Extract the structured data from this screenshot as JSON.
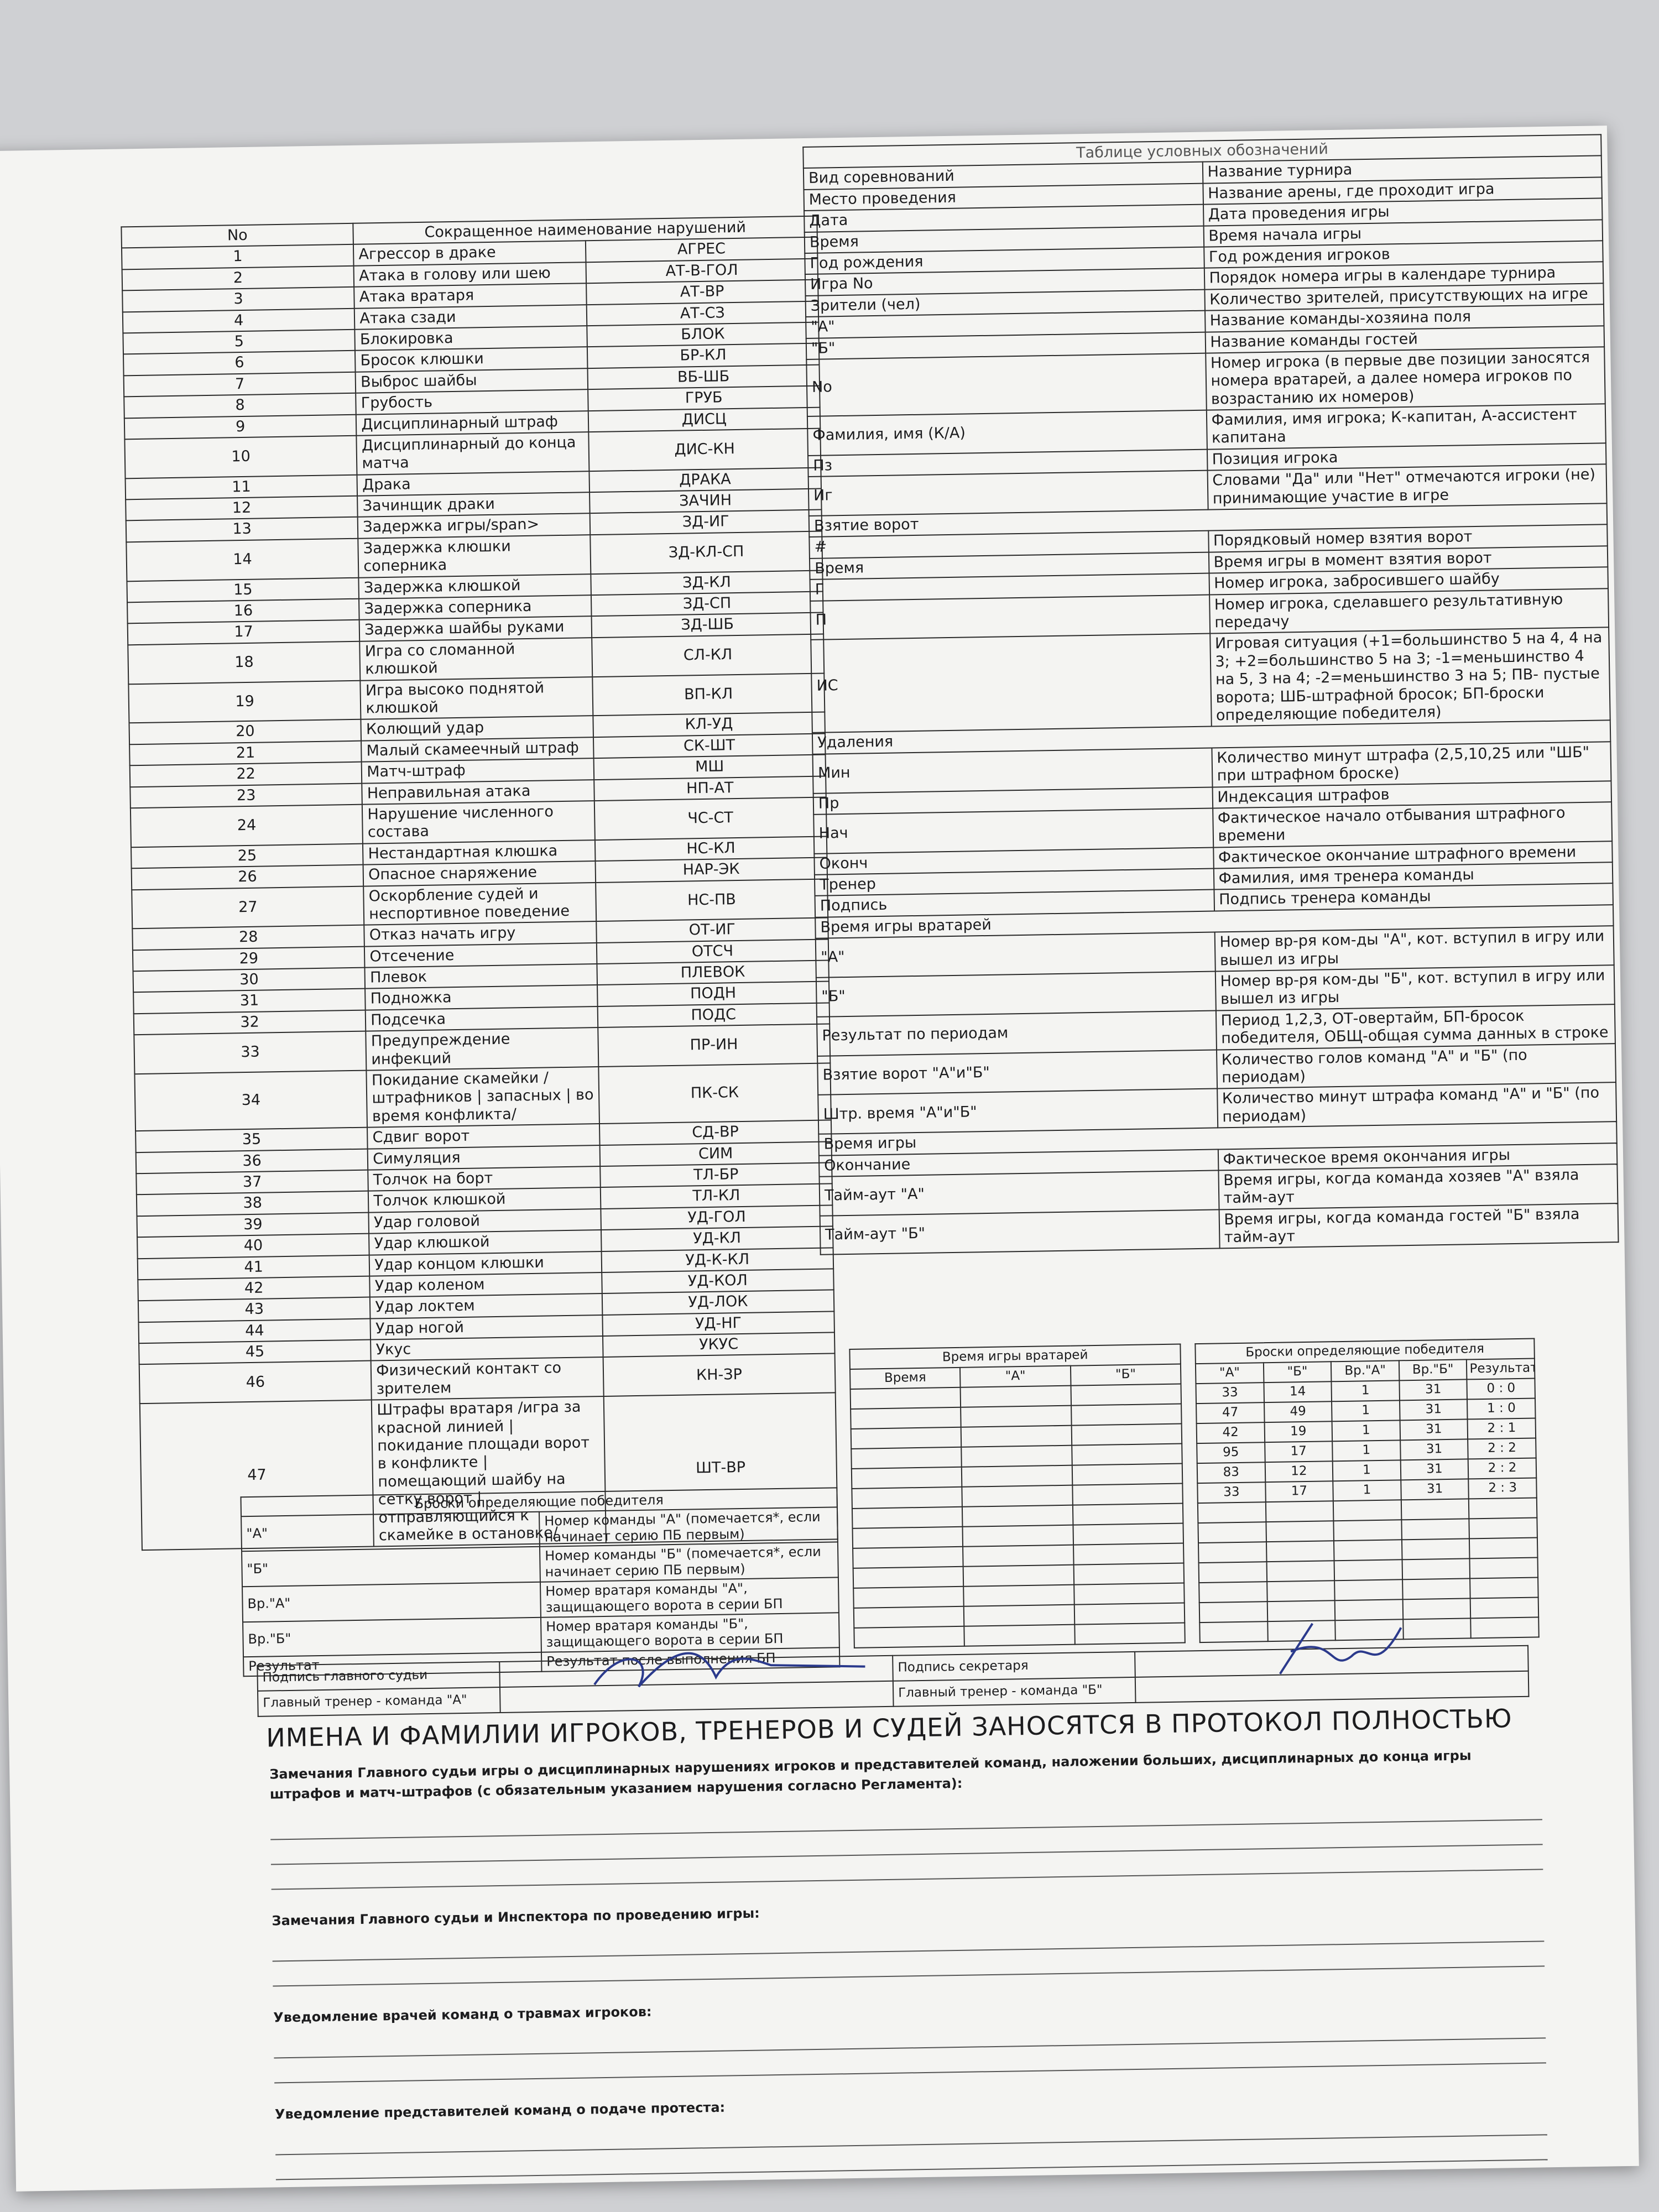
{
  "violations": {
    "header": [
      "No",
      "Сокращенное наименование нарушений"
    ],
    "rows": [
      [
        "1",
        "Агрессор в драке",
        "АГРЕС"
      ],
      [
        "2",
        "Атака в голову или шею",
        "АТ-В-ГОЛ"
      ],
      [
        "3",
        "Атака вратаря",
        "АТ-ВР"
      ],
      [
        "4",
        "Атака сзади",
        "АТ-СЗ"
      ],
      [
        "5",
        "Блокировка",
        "БЛОК"
      ],
      [
        "6",
        "Бросок клюшки",
        "БР-КЛ"
      ],
      [
        "7",
        "Выброс шайбы",
        "ВБ-ШБ"
      ],
      [
        "8",
        "Грубость",
        "ГРУБ"
      ],
      [
        "9",
        "Дисциплинарный штраф",
        "ДИСЦ"
      ],
      [
        "10",
        "Дисциплинарный до конца матча",
        "ДИС-КН"
      ],
      [
        "11",
        "Драка",
        "ДРАКА"
      ],
      [
        "12",
        "Зачинщик драки",
        "ЗАЧИН"
      ],
      [
        "13",
        "Задержка игры/span>",
        "ЗД-ИГ"
      ],
      [
        "14",
        "Задержка клюшки соперника",
        "ЗД-КЛ-СП"
      ],
      [
        "15",
        "Задержка клюшкой",
        "ЗД-КЛ"
      ],
      [
        "16",
        "Задержка соперника",
        "ЗД-СП"
      ],
      [
        "17",
        "Задержка шайбы руками",
        "ЗД-ШБ"
      ],
      [
        "18",
        "Игра со сломанной клюшкой",
        "СЛ-КЛ"
      ],
      [
        "19",
        "Игра высоко поднятой клюшкой",
        "ВП-КЛ"
      ],
      [
        "20",
        "Колющий удар",
        "КЛ-УД"
      ],
      [
        "21",
        "Малый скамеечный штраф",
        "СК-ШТ"
      ],
      [
        "22",
        "Матч-штраф",
        "МШ"
      ],
      [
        "23",
        "Неправильная атака",
        "НП-АТ"
      ],
      [
        "24",
        "Нарушение численного состава",
        "ЧС-СТ"
      ],
      [
        "25",
        "Нестандартная клюшка",
        "НС-КЛ"
      ],
      [
        "26",
        "Опасное снаряжение",
        "НАР-ЭК"
      ],
      [
        "27",
        "Оскорбление судей и неспортивное поведение",
        "НС-ПВ"
      ],
      [
        "28",
        "Отказ начать игру",
        "ОТ-ИГ"
      ],
      [
        "29",
        "Отсечение",
        "ОТСЧ"
      ],
      [
        "30",
        "Плевок",
        "ПЛЕВОК"
      ],
      [
        "31",
        "Подножка",
        "ПОДН"
      ],
      [
        "32",
        "Подсечка",
        "ПОДС"
      ],
      [
        "33",
        "Предупреждение инфекций",
        "ПР-ИН"
      ],
      [
        "34",
        "Покидание скамейки /штрафников | запасных | во время конфликта/",
        "ПК-СК"
      ],
      [
        "35",
        "Сдвиг ворот",
        "СД-ВР"
      ],
      [
        "36",
        "Симуляция",
        "СИМ"
      ],
      [
        "37",
        "Толчок на борт",
        "ТЛ-БР"
      ],
      [
        "38",
        "Толчок клюшкой",
        "ТЛ-КЛ"
      ],
      [
        "39",
        "Удар головой",
        "УД-ГОЛ"
      ],
      [
        "40",
        "Удар клюшкой",
        "УД-КЛ"
      ],
      [
        "41",
        "Удар концом клюшки",
        "УД-К-КЛ"
      ],
      [
        "42",
        "Удар коленом",
        "УД-КОЛ"
      ],
      [
        "43",
        "Удар локтем",
        "УД-ЛОК"
      ],
      [
        "44",
        "Удар ногой",
        "УД-НГ"
      ],
      [
        "45",
        "Укус",
        "УКУС"
      ],
      [
        "46",
        "Физический контакт со зрителем",
        "КН-ЗР"
      ],
      [
        "47",
        "Штрафы вратаря /игра за красной линией | покидание площади ворот в конфликте | помещающий шайбу на сетку ворот |отправляющийся к скамейке в остановке/",
        "ШТ-ВР"
      ]
    ]
  },
  "legend": {
    "title": "Таблице условных обозначений",
    "rows": [
      [
        "Вид соревнований",
        "Название турнира"
      ],
      [
        "Место проведения",
        "Название арены, где проходит игра"
      ],
      [
        "Дата",
        "Дата проведения игры"
      ],
      [
        "Время",
        "Время начала игры"
      ],
      [
        "Год рождения",
        "Год рождения игроков"
      ],
      [
        "Игра No",
        "Порядок номера игры в календаре турнира"
      ],
      [
        "Зрители (чел)",
        "Количество зрителей, присутствующих на игре"
      ],
      [
        "\"А\"",
        "Название команды-хозяина поля"
      ],
      [
        "\"Б\"",
        "Название команды гостей"
      ],
      [
        "No",
        "Номер игрока (в первые две позиции заносятся номера вратарей, а далее номера игроков по возрастанию их номеров)"
      ],
      [
        "Фамилия, имя (К/А)",
        "Фамилия, имя игрока; К-капитан, А-ассистент капитана"
      ],
      [
        "Пз",
        "Позиция игрока"
      ],
      [
        "Иг",
        "Словами \"Да\" или \"Нет\" отмечаются игроки (не) принимающие участие в игре"
      ],
      [
        "Взятие ворот"
      ],
      [
        "#",
        "Порядковый номер взятия ворот"
      ],
      [
        "Время",
        "Время игры в момент взятия ворот"
      ],
      [
        "Г",
        "Номер игрока, забросившего шайбу"
      ],
      [
        "П",
        "Номер игрока, сделавшего результативную передачу"
      ],
      [
        "ИС",
        "Игровая ситуация (+1=большинство 5 на 4, 4 на 3; +2=большинство 5 на 3; -1=меньшинство 4 на 5, 3 на 4; -2=меньшинство 3 на 5; ПВ- пустые ворота; ШБ-штрафной бросок; БП-броски определяющие победителя)"
      ],
      [
        "Удаления"
      ],
      [
        "Мин",
        "Количество минут штрафа (2,5,10,25 или \"ШБ\" при штрафном броске)"
      ],
      [
        "Пр",
        "Индексация штрафов"
      ],
      [
        "Нач",
        "Фактическое начало отбывания штрафного времени"
      ],
      [
        "Оконч",
        "Фактическое окончание штрафного времени"
      ],
      [
        "Тренер",
        "Фамилия, имя тренера команды"
      ],
      [
        "Подпись",
        "Подпись тренера команды"
      ],
      [
        "Время игры вратарей"
      ],
      [
        "\"А\"",
        "Номер вр-ря ком-ды \"А\", кот. вступил в игру или вышел из игры"
      ],
      [
        "\"Б\"",
        "Номер вр-ря ком-ды \"Б\", кот. вступил в игру или вышел из игры"
      ],
      [
        "Результат по периодам",
        "Период 1,2,3, ОТ-овертайм, БП-бросок победителя, ОБЩ-общая сумма данных в строке"
      ],
      [
        "Взятие ворот \"А\"и\"Б\"",
        "Количество голов команд \"А\" и \"Б\" (по периодам)"
      ],
      [
        "Штр. время \"А\"и\"Б\"",
        "Количество минут штрафа команд \"А\" и \"Б\" (по периодам)"
      ],
      [
        "Время игры"
      ],
      [
        "Окончание",
        "Фактическое время окончания игры"
      ],
      [
        "Тайм-аут \"А\"",
        "Время игры, когда команда хозяев \"А\" взяла тайм-аут"
      ],
      [
        "Тайм-аут \"Б\"",
        "Время игры, когда команда гостей \"Б\" взяла тайм-аут"
      ]
    ]
  },
  "shootout_legend": {
    "title": "Броски определяющие победителя",
    "rows": [
      [
        "\"А\"",
        "Номер команды \"А\" (помечается*, если начинает серию ПБ первым)"
      ],
      [
        "\"Б\"",
        "Номер команды \"Б\" (помечается*, если начинает серию ПБ первым)"
      ],
      [
        "Вр.\"А\"",
        "Номер вратаря команды \"А\", защищающего ворота в серии БП"
      ],
      [
        "Вр.\"Б\"",
        "Номер вратаря команды \"Б\", защищающего ворота в серии БП"
      ],
      [
        "Результат",
        "Результат после выполнения БП"
      ]
    ]
  },
  "goalie_time": {
    "title": "Время игры вратарей",
    "columns": [
      "Время",
      "\"А\"",
      "\"Б\""
    ]
  },
  "shootout": {
    "title": "Броски определяющие победителя",
    "columns": [
      "\"А\"",
      "\"Б\"",
      "Вр.\"А\"",
      "Вр.\"Б\"",
      "Результат"
    ],
    "rows": [
      [
        "33",
        "14",
        "1",
        "31",
        "0 : 0"
      ],
      [
        "47",
        "49",
        "1",
        "31",
        "1 : 0"
      ],
      [
        "42",
        "19",
        "1",
        "31",
        "2 : 1"
      ],
      [
        "95",
        "17",
        "1",
        "31",
        "2 : 2"
      ],
      [
        "83",
        "12",
        "1",
        "31",
        "2 : 2"
      ],
      [
        "33",
        "17",
        "1",
        "31",
        "2 : 3"
      ]
    ]
  },
  "signatures": [
    [
      "Подпись главного судьи",
      "Подпись секретаря"
    ],
    [
      "Главный тренер - команда \"А\"",
      "Главный тренер - команда \"Б\""
    ]
  ],
  "heading": "ИМЕНА И ФАМИЛИИ ИГРОКОВ, ТРЕНЕРОВ И СУДЕЙ ЗАНОСЯТСЯ В ПРОТОКОЛ ПОЛНОСТЬЮ",
  "remarks": [
    "Замечания Главного судьи игры о дисциплинарных нарушениях игроков и представителей команд, наложении больших, дисциплинарных до конца игры штрафов и матч-штрафов (с обязательным указанием нарушения согласно Регламента):",
    "Замечания Главного судьи и Инспектора по проведению игры:",
    "Уведомление врачей команд о травмах игроков:",
    "Уведомление представителей команд о подаче протеста:"
  ]
}
